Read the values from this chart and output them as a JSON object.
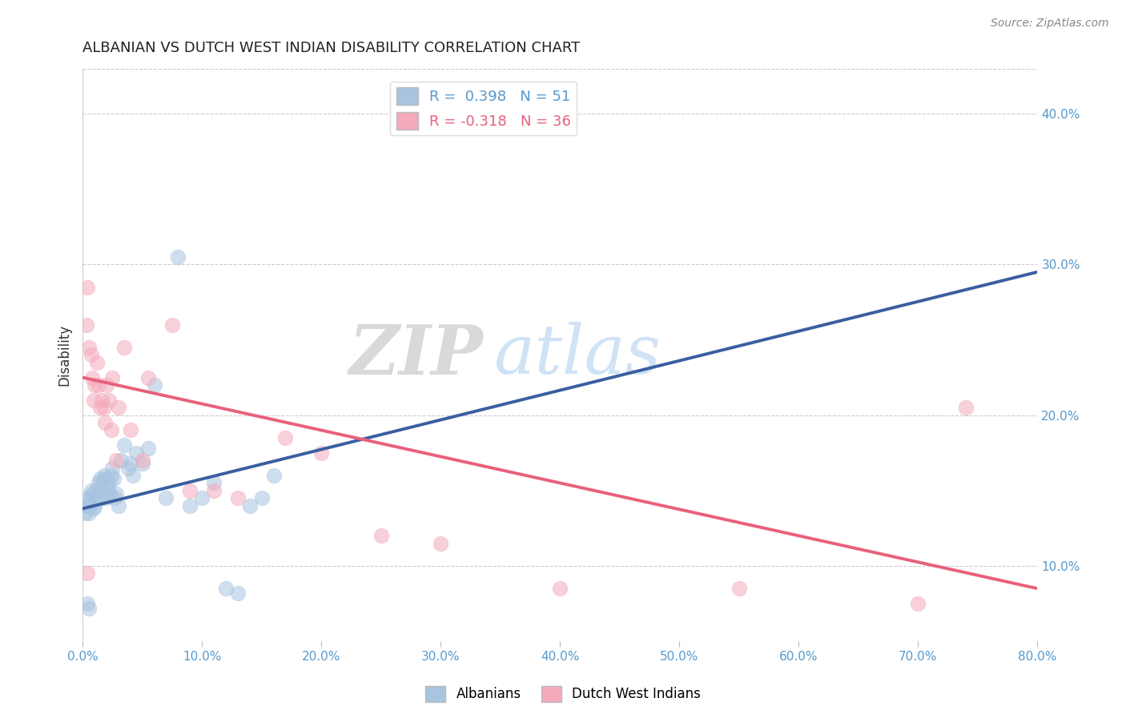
{
  "title": "ALBANIAN VS DUTCH WEST INDIAN DISABILITY CORRELATION CHART",
  "source": "Source: ZipAtlas.com",
  "xlabel_vals": [
    0.0,
    10.0,
    20.0,
    30.0,
    40.0,
    50.0,
    60.0,
    70.0,
    80.0
  ],
  "ylabel": "Disability",
  "ylabel_vals": [
    10.0,
    20.0,
    30.0,
    40.0
  ],
  "xlim": [
    0.0,
    80.0
  ],
  "ylim": [
    5.0,
    43.0
  ],
  "watermark_zip": "ZIP",
  "watermark_atlas": "atlas",
  "legend_blue_label": "R =  0.398   N = 51",
  "legend_pink_label": "R = -0.318   N = 36",
  "blue_color": "#A8C4E0",
  "pink_color": "#F4AABB",
  "blue_line_color": "#3A5FA0",
  "pink_line_color": "#E8607A",
  "dashed_line_color": "#A8C4E0",
  "albanians_x": [
    0.3,
    0.4,
    0.5,
    0.6,
    0.7,
    0.8,
    0.9,
    1.0,
    1.1,
    1.2,
    1.3,
    1.4,
    1.5,
    1.6,
    1.7,
    1.8,
    1.9,
    2.0,
    2.1,
    2.2,
    2.3,
    2.4,
    2.5,
    2.6,
    2.7,
    2.8,
    3.0,
    3.2,
    3.5,
    3.8,
    4.0,
    4.2,
    4.5,
    5.0,
    5.5,
    6.0,
    7.0,
    8.0,
    9.0,
    10.0,
    11.0,
    12.0,
    13.0,
    14.0,
    15.0,
    16.0,
    0.2,
    0.3,
    0.4,
    0.5,
    0.6
  ],
  "albanians_y": [
    14.5,
    14.0,
    13.5,
    14.5,
    15.0,
    14.8,
    13.8,
    14.0,
    15.0,
    14.5,
    15.5,
    15.0,
    15.8,
    14.5,
    15.5,
    16.0,
    15.8,
    14.5,
    15.2,
    15.5,
    14.8,
    16.0,
    16.5,
    15.8,
    14.5,
    14.8,
    14.0,
    17.0,
    18.0,
    16.5,
    16.8,
    16.0,
    17.5,
    16.8,
    17.8,
    22.0,
    14.5,
    30.5,
    14.0,
    14.5,
    15.5,
    8.5,
    8.2,
    14.0,
    14.5,
    16.0,
    13.5,
    14.0,
    7.5,
    7.2,
    14.0
  ],
  "dutch_x": [
    0.3,
    0.4,
    0.5,
    0.7,
    0.8,
    0.9,
    1.0,
    1.2,
    1.3,
    1.5,
    1.6,
    1.8,
    1.9,
    2.0,
    2.2,
    2.4,
    2.5,
    2.8,
    3.0,
    3.5,
    4.0,
    5.0,
    5.5,
    7.5,
    9.0,
    11.0,
    13.0,
    17.0,
    20.0,
    25.0,
    30.0,
    40.0,
    55.0,
    70.0,
    74.0,
    0.4
  ],
  "dutch_y": [
    26.0,
    28.5,
    24.5,
    24.0,
    22.5,
    21.0,
    22.0,
    23.5,
    22.0,
    20.5,
    21.0,
    20.5,
    19.5,
    22.0,
    21.0,
    19.0,
    22.5,
    17.0,
    20.5,
    24.5,
    19.0,
    17.0,
    22.5,
    26.0,
    15.0,
    15.0,
    14.5,
    18.5,
    17.5,
    12.0,
    11.5,
    8.5,
    8.5,
    7.5,
    20.5,
    9.5
  ],
  "blue_trendline_x": [
    0.0,
    80.0
  ],
  "blue_trendline_y": [
    13.8,
    29.5
  ],
  "pink_trendline_x": [
    0.0,
    80.0
  ],
  "pink_trendline_y": [
    22.5,
    8.5
  ],
  "dashed_trendline_x": [
    0.0,
    80.0
  ],
  "dashed_trendline_y": [
    13.8,
    29.5
  ]
}
